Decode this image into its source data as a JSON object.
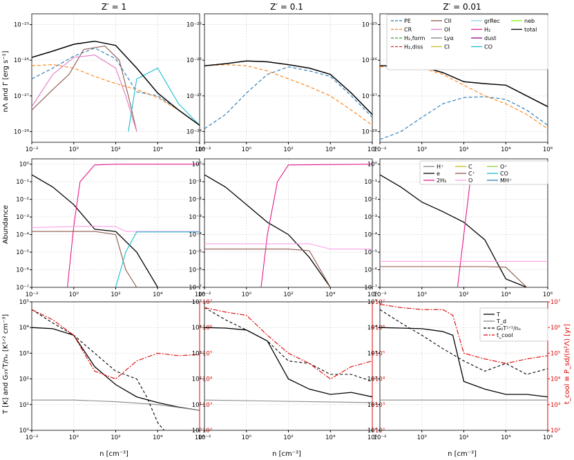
{
  "figure": {
    "columns": [
      {
        "title": "Z′ = 1"
      },
      {
        "title": "Z′ = 0.1"
      },
      {
        "title": "Z′ = 0.01"
      }
    ],
    "xlabel": "n [cm⁻³]",
    "rows": [
      {
        "ylabel": "nΛ  and  Γ [erg s⁻¹]"
      },
      {
        "ylabel": "Abundance"
      },
      {
        "ylabel": "T [K]  and  G₀√T/nₑ [K¹ᐟ² cm⁻³]",
        "ylabel_right": "t_cool ≡ P_sd/(n²Λ) [yr]"
      }
    ],
    "legends": {
      "cooling": [
        "PE",
        "CR",
        "H₂,form",
        "H₂,diss",
        "CII",
        "OI",
        "Lyα",
        "CI",
        "grRec",
        "H₂",
        "dust",
        "CO",
        "neb",
        "total"
      ],
      "abundance": [
        "H⁺",
        "e",
        "2H₂",
        "C",
        "C⁺",
        "O",
        "O⁺",
        "CO",
        "MH⁺"
      ],
      "temperature": [
        "T",
        "T_d",
        "G₀T¹ᐟ²/nₑ",
        "t_cool"
      ]
    },
    "colors": {
      "PE": "#1f77b4",
      "CR": "#ff7f0e",
      "H2form": "#2ca02c",
      "H2diss": "#d62728",
      "CII": "#8c564b",
      "OI": "#e377c2",
      "Lya": "#7f7f7f",
      "CI": "#bcbd22",
      "grRec": "#87ceeb",
      "H2": "#e41a8c",
      "dust": "#8b008b",
      "CO": "#17becf",
      "neb": "#7cfc00",
      "total": "#000000",
      "tcool": "#dd0000",
      "Hplus": "#888888",
      "e": "#000000",
      "C": "#bcbd22",
      "Cplus": "#8c564b",
      "O": "#ff9eea",
      "Oplus": "#9acd32",
      "MHplus": "#2a7fb8"
    }
  },
  "chart_data": [
    {
      "type": "line",
      "panel": "cooling Z'=1",
      "xscale": "log",
      "yscale": "log",
      "xlim": [
        0.01,
        1000000
      ],
      "ylim": [
        5e-29,
        2e-25
      ],
      "series": [
        {
          "name": "PE",
          "x": [
            0.01,
            0.1,
            1,
            10,
            100,
            1000,
            10000,
            100000,
            1000000
          ],
          "y": [
            3e-27,
            6e-27,
            1.3e-26,
            2.2e-26,
            1.1e-26,
            1.3e-27,
            1e-27,
            4e-28,
            1.5e-28
          ]
        },
        {
          "name": "CR",
          "x": [
            0.01,
            0.1,
            1,
            10,
            100,
            1000,
            10000,
            100000,
            1000000
          ],
          "y": [
            7e-27,
            7.5e-27,
            6e-27,
            3.5e-27,
            2.2e-27,
            1.5e-27,
            9e-28,
            4e-28,
            1.5e-28
          ]
        },
        {
          "name": "CII",
          "x": [
            0.01,
            0.1,
            0.6,
            3,
            30,
            150,
            400,
            1000
          ],
          "y": [
            4e-28,
            1.5e-27,
            4e-27,
            2e-26,
            2.5e-26,
            1e-26,
            1e-27,
            1e-28
          ]
        },
        {
          "name": "OI",
          "x": [
            0.01,
            0.1,
            1,
            10,
            100,
            300,
            1000
          ],
          "y": [
            5e-28,
            4e-27,
            1.2e-26,
            1.4e-26,
            6e-27,
            1e-27,
            1e-28
          ]
        },
        {
          "name": "CO",
          "x": [
            400,
            1000,
            10000,
            100000,
            1000000
          ],
          "y": [
            1e-28,
            3e-27,
            6e-27,
            6e-28,
            1.5e-28
          ]
        },
        {
          "name": "total",
          "x": [
            0.01,
            0.1,
            1,
            10,
            100,
            1000,
            10000,
            100000,
            1000000
          ],
          "y": [
            1.2e-26,
            1.8e-26,
            2.8e-26,
            3.4e-26,
            2.6e-26,
            6e-27,
            1.2e-27,
            4e-28,
            1.5e-28
          ]
        }
      ]
    },
    {
      "type": "line",
      "panel": "cooling Z'=0.1",
      "xscale": "log",
      "yscale": "log",
      "xlim": [
        0.01,
        1000000
      ],
      "ylim": [
        5e-29,
        2e-25
      ],
      "series": [
        {
          "name": "PE",
          "x": [
            0.01,
            0.1,
            1,
            10,
            100,
            1000,
            10000,
            100000,
            1000000
          ],
          "y": [
            1.2e-28,
            3e-28,
            1.2e-27,
            4e-27,
            6.5e-27,
            5e-27,
            3.5e-27,
            1e-27,
            2.5e-28
          ]
        },
        {
          "name": "CR",
          "x": [
            0.01,
            0.1,
            1,
            10,
            100,
            1000,
            10000,
            100000,
            1000000
          ],
          "y": [
            7e-27,
            7.5e-27,
            7e-27,
            5e-27,
            3e-27,
            1.8e-27,
            1e-27,
            4e-28,
            1.5e-28
          ]
        },
        {
          "name": "total",
          "x": [
            0.01,
            0.1,
            1,
            10,
            100,
            1000,
            10000,
            100000,
            1000000
          ],
          "y": [
            7e-27,
            8e-27,
            9.5e-27,
            9e-27,
            7.5e-27,
            6e-27,
            4e-27,
            1.2e-27,
            3e-28
          ]
        }
      ]
    },
    {
      "type": "line",
      "panel": "cooling Z'=0.01",
      "xscale": "log",
      "yscale": "log",
      "xlim": [
        0.01,
        1000000
      ],
      "ylim": [
        5e-29,
        2e-25
      ],
      "series": [
        {
          "name": "PE",
          "x": [
            0.01,
            0.1,
            1,
            10,
            100,
            1000,
            10000,
            100000,
            1000000
          ],
          "y": [
            6e-29,
            1e-28,
            2.5e-28,
            6e-28,
            9e-28,
            9.5e-28,
            8e-28,
            4e-28,
            1.5e-28
          ]
        },
        {
          "name": "CR",
          "x": [
            0.01,
            0.1,
            1,
            10,
            100,
            1000,
            10000,
            100000,
            1000000
          ],
          "y": [
            6.5e-27,
            6.8e-27,
            6e-27,
            4e-27,
            2e-27,
            1e-27,
            6e-28,
            3e-28,
            1.2e-28
          ]
        },
        {
          "name": "total",
          "x": [
            0.01,
            0.1,
            1,
            10,
            100,
            1000,
            10000,
            100000,
            1000000
          ],
          "y": [
            7e-27,
            7e-27,
            6.5e-27,
            4.5e-27,
            2.5e-27,
            2.2e-27,
            2e-27,
            1e-27,
            5e-28
          ]
        }
      ]
    },
    {
      "type": "line",
      "panel": "abundance Z'=1",
      "xscale": "log",
      "yscale": "log",
      "xlim": [
        0.01,
        1000000
      ],
      "ylim": [
        1e-07,
        2
      ],
      "series": [
        {
          "name": "e",
          "x": [
            0.01,
            0.1,
            1,
            10,
            100,
            1000,
            10000
          ],
          "y": [
            0.25,
            0.05,
            0.005,
            0.0002,
            0.00015,
            1e-05,
            1e-07
          ]
        },
        {
          "name": "2H₂",
          "x": [
            0.5,
            1,
            2,
            10,
            100,
            1000000
          ],
          "y": [
            1e-07,
            0.0003,
            0.1,
            0.9,
            1,
            1
          ]
        },
        {
          "name": "C⁺",
          "x": [
            0.01,
            10,
            100,
            300,
            1000
          ],
          "y": [
            0.00015,
            0.00015,
            0.0001,
            1e-06,
            1e-07
          ]
        },
        {
          "name": "O",
          "x": [
            0.01,
            10,
            100,
            300,
            1000000
          ],
          "y": [
            0.00025,
            0.0003,
            0.00028,
            0.00015,
            0.00015
          ]
        },
        {
          "name": "CO",
          "x": [
            100,
            300,
            1000,
            1000000
          ],
          "y": [
            1e-07,
            1e-05,
            0.00014,
            0.00014
          ]
        }
      ]
    },
    {
      "type": "line",
      "panel": "abundance Z'=0.1",
      "xscale": "log",
      "yscale": "log",
      "xlim": [
        0.01,
        1000000
      ],
      "ylim": [
        1e-07,
        2
      ],
      "series": [
        {
          "name": "e",
          "x": [
            0.01,
            0.1,
            1,
            10,
            100,
            1000,
            10000
          ],
          "y": [
            0.25,
            0.05,
            0.005,
            0.0005,
            0.0001,
            5e-06,
            1e-07
          ]
        },
        {
          "name": "2H₂",
          "x": [
            5,
            10,
            30,
            100,
            1000000
          ],
          "y": [
            1e-07,
            0.0001,
            0.1,
            0.9,
            1
          ]
        },
        {
          "name": "C⁺",
          "x": [
            0.01,
            100,
            1000,
            10000
          ],
          "y": [
            1.5e-05,
            1.5e-05,
            1.2e-05,
            1e-07
          ]
        },
        {
          "name": "O",
          "x": [
            0.01,
            1000,
            10000,
            1000000
          ],
          "y": [
            3e-05,
            3e-05,
            1.5e-05,
            1.5e-05
          ]
        }
      ]
    },
    {
      "type": "line",
      "panel": "abundance Z'=0.01",
      "xscale": "log",
      "yscale": "log",
      "xlim": [
        0.01,
        1000000
      ],
      "ylim": [
        1e-07,
        2
      ],
      "series": [
        {
          "name": "e",
          "x": [
            0.01,
            0.1,
            1,
            10,
            100,
            1000,
            10000,
            100000
          ],
          "y": [
            0.25,
            0.05,
            0.007,
            0.002,
            0.0005,
            5e-05,
            3e-07,
            1e-07
          ]
        },
        {
          "name": "2H₂",
          "x": [
            50,
            100,
            200,
            1000,
            1000000
          ],
          "y": [
            1e-07,
            0.0001,
            0.1,
            0.9,
            1
          ]
        },
        {
          "name": "C⁺",
          "x": [
            0.01,
            1000,
            10000,
            100000
          ],
          "y": [
            1.5e-06,
            1.5e-06,
            1.4e-06,
            1e-07
          ]
        },
        {
          "name": "O",
          "x": [
            0.01,
            1000000
          ],
          "y": [
            3e-06,
            3e-06
          ]
        }
      ]
    },
    {
      "type": "line",
      "panel": "temperature Z'=1",
      "xscale": "log",
      "yscale": "log",
      "xlim": [
        0.01,
        1000000
      ],
      "ylim": [
        1,
        100000
      ],
      "y2scale": "log",
      "y2lim": [
        100,
        10000000
      ],
      "series": [
        {
          "name": "T",
          "x": [
            0.01,
            0.1,
            1,
            10,
            100,
            1000,
            10000,
            100000,
            1000000
          ],
          "y": [
            10000,
            9000,
            5000,
            300,
            60,
            20,
            12,
            8,
            6
          ]
        },
        {
          "name": "T_d",
          "x": [
            0.01,
            1,
            100,
            10000,
            1000000
          ],
          "y": [
            15,
            15,
            13,
            10,
            6
          ]
        },
        {
          "name": "G₀T¹ᐟ²/nₑ",
          "x": [
            0.01,
            0.1,
            1,
            10,
            100,
            1000,
            3000,
            10000,
            20000
          ],
          "y": [
            50000,
            15000,
            5000,
            1000,
            200,
            100,
            20,
            2,
            1
          ]
        },
        {
          "name": "t_cool",
          "x": [
            0.01,
            0.1,
            1,
            10,
            100,
            1000,
            10000,
            100000,
            1000000
          ],
          "y": [
            5000000,
            2000000,
            500000,
            20000,
            10000,
            50000,
            100000,
            80000,
            90000
          ]
        }
      ]
    },
    {
      "type": "line",
      "panel": "temperature Z'=0.1",
      "xscale": "log",
      "yscale": "log",
      "xlim": [
        0.01,
        1000000
      ],
      "ylim": [
        1,
        100000
      ],
      "y2scale": "log",
      "y2lim": [
        100,
        10000000
      ],
      "series": [
        {
          "name": "T",
          "x": [
            0.01,
            0.1,
            1,
            10,
            100,
            1000,
            10000,
            100000,
            1000000
          ],
          "y": [
            10000,
            9500,
            8000,
            3000,
            100,
            40,
            25,
            30,
            20
          ]
        },
        {
          "name": "T_d",
          "x": [
            0.01,
            1000000
          ],
          "y": [
            15,
            12
          ]
        },
        {
          "name": "G₀T¹ᐟ²/nₑ",
          "x": [
            0.01,
            0.1,
            1,
            10,
            100,
            1000,
            10000,
            100000,
            1000000
          ],
          "y": [
            60000,
            20000,
            8000,
            3000,
            500,
            400,
            150,
            150,
            80
          ]
        },
        {
          "name": "t_cool",
          "x": [
            0.01,
            0.1,
            1,
            10,
            100,
            1000,
            10000,
            100000,
            1000000
          ],
          "y": [
            6000000,
            4000000,
            3000000,
            500000,
            100000,
            40000,
            10000,
            30000,
            50000
          ]
        }
      ]
    },
    {
      "type": "line",
      "panel": "temperature Z'=0.01",
      "xscale": "log",
      "yscale": "log",
      "xlim": [
        0.01,
        1000000
      ],
      "ylim": [
        1,
        100000
      ],
      "y2scale": "log",
      "y2lim": [
        100,
        10000000
      ],
      "series": [
        {
          "name": "T",
          "x": [
            0.01,
            0.1,
            1,
            10,
            30,
            100,
            1000,
            10000,
            100000,
            1000000
          ],
          "y": [
            10000,
            9500,
            9000,
            7000,
            5000,
            80,
            40,
            25,
            25,
            20
          ]
        },
        {
          "name": "T_d",
          "x": [
            0.01,
            1000000
          ],
          "y": [
            15,
            15
          ]
        },
        {
          "name": "G₀T¹ᐟ²/nₑ",
          "x": [
            0.01,
            0.1,
            1,
            10,
            100,
            1000,
            10000,
            100000,
            1000000
          ],
          "y": [
            50000,
            15000,
            5000,
            1500,
            500,
            200,
            400,
            150,
            250
          ]
        },
        {
          "name": "t_cool",
          "x": [
            0.01,
            0.1,
            1,
            10,
            30,
            100,
            1000,
            10000,
            100000,
            1000000
          ],
          "y": [
            8000000,
            6000000,
            5000000,
            5000000,
            3000000,
            100000,
            60000,
            40000,
            60000,
            80000
          ]
        }
      ]
    }
  ]
}
